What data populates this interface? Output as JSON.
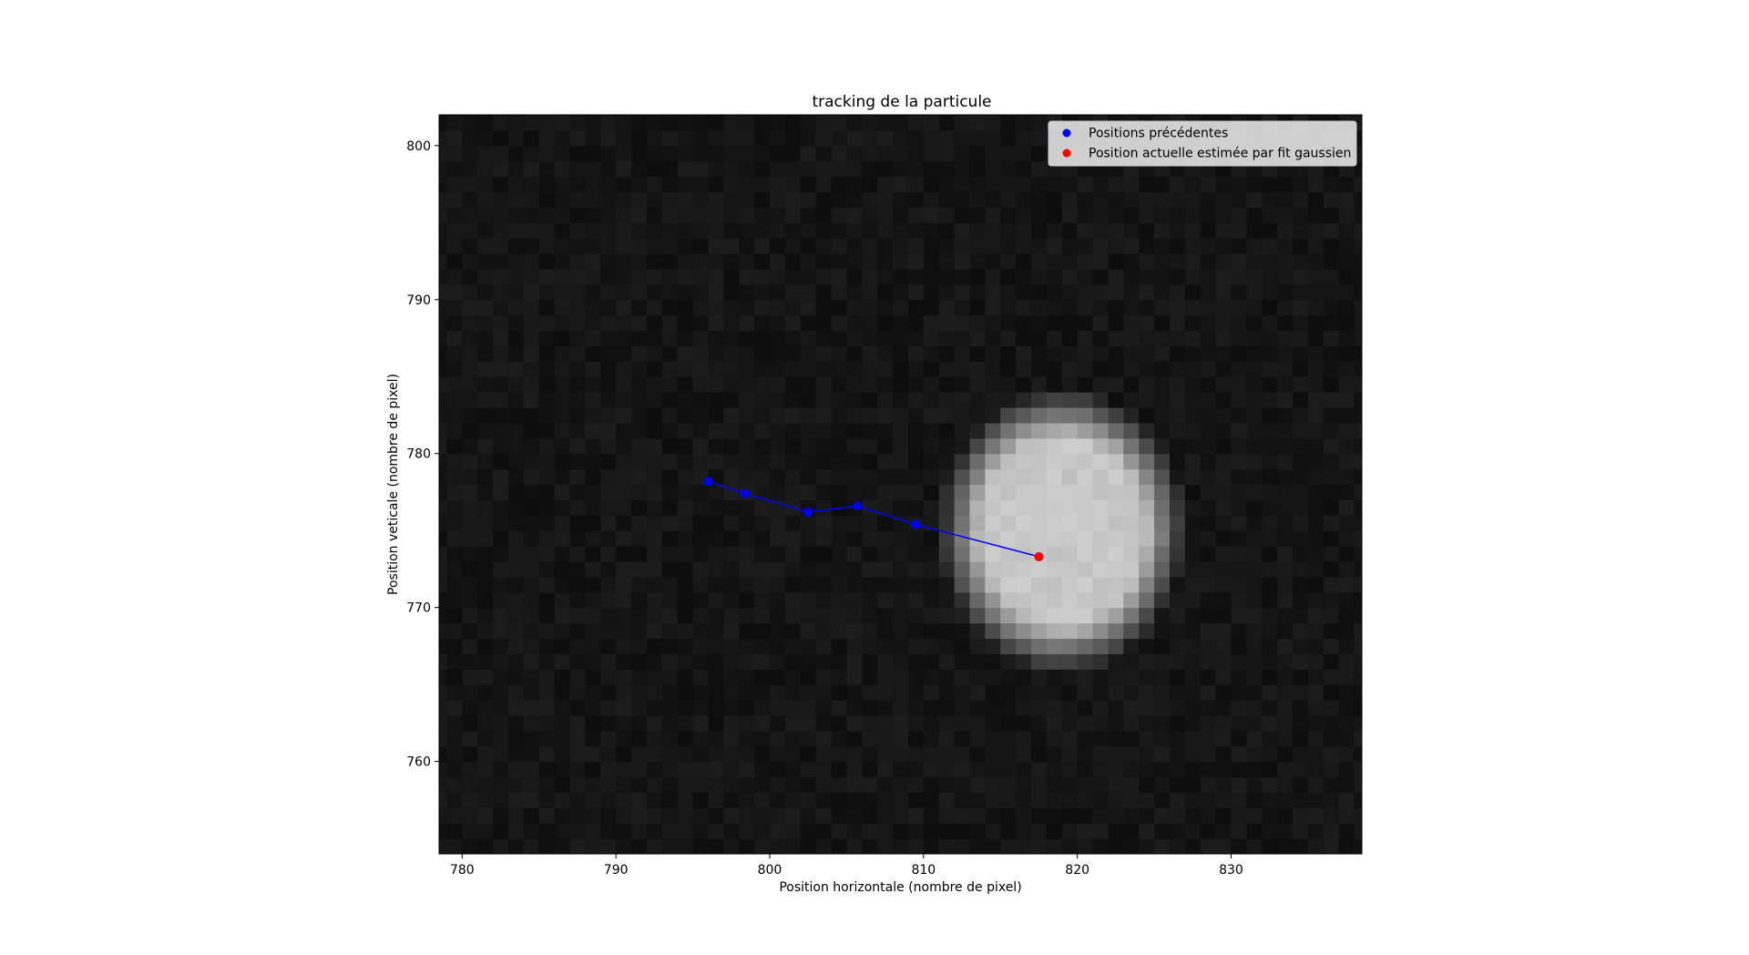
{
  "chart_data": {
    "type": "scatter",
    "title": "tracking de la particule",
    "xlabel": "Position horizontale (nombre de pixel)",
    "ylabel": "Position veticale (nombre de pixel)",
    "xlim": [
      778.5,
      838.5
    ],
    "ylim": [
      754,
      802
    ],
    "xticks": [
      780,
      790,
      800,
      810,
      820,
      830
    ],
    "yticks": [
      760,
      770,
      780,
      790,
      800
    ],
    "grid": false,
    "legend_position": "top-right",
    "background": {
      "type": "heatmap",
      "colormap": "gray",
      "description_values": "noise with bright particle",
      "blob_center": [
        819,
        775
      ],
      "blob_radius_x": 6.5,
      "blob_radius_y": 7.5,
      "background_level": 0.08,
      "blob_level": 0.78
    },
    "series": [
      {
        "name": "Positions précédentes",
        "color": "#0000ff",
        "x": [
          796.0,
          798.4,
          802.5,
          805.7,
          809.5
        ],
        "y": [
          778.2,
          777.4,
          776.2,
          776.6,
          775.4
        ]
      },
      {
        "name": "Position actuelle estimée par fit gaussien",
        "color": "#ff0000",
        "x": [
          817.5
        ],
        "y": [
          773.3
        ]
      }
    ],
    "trajectory": {
      "color": "#0000ff",
      "x": [
        796.0,
        798.4,
        802.5,
        805.7,
        809.5,
        817.5
      ],
      "y": [
        778.2,
        777.4,
        776.2,
        776.6,
        775.4,
        773.3
      ]
    }
  }
}
